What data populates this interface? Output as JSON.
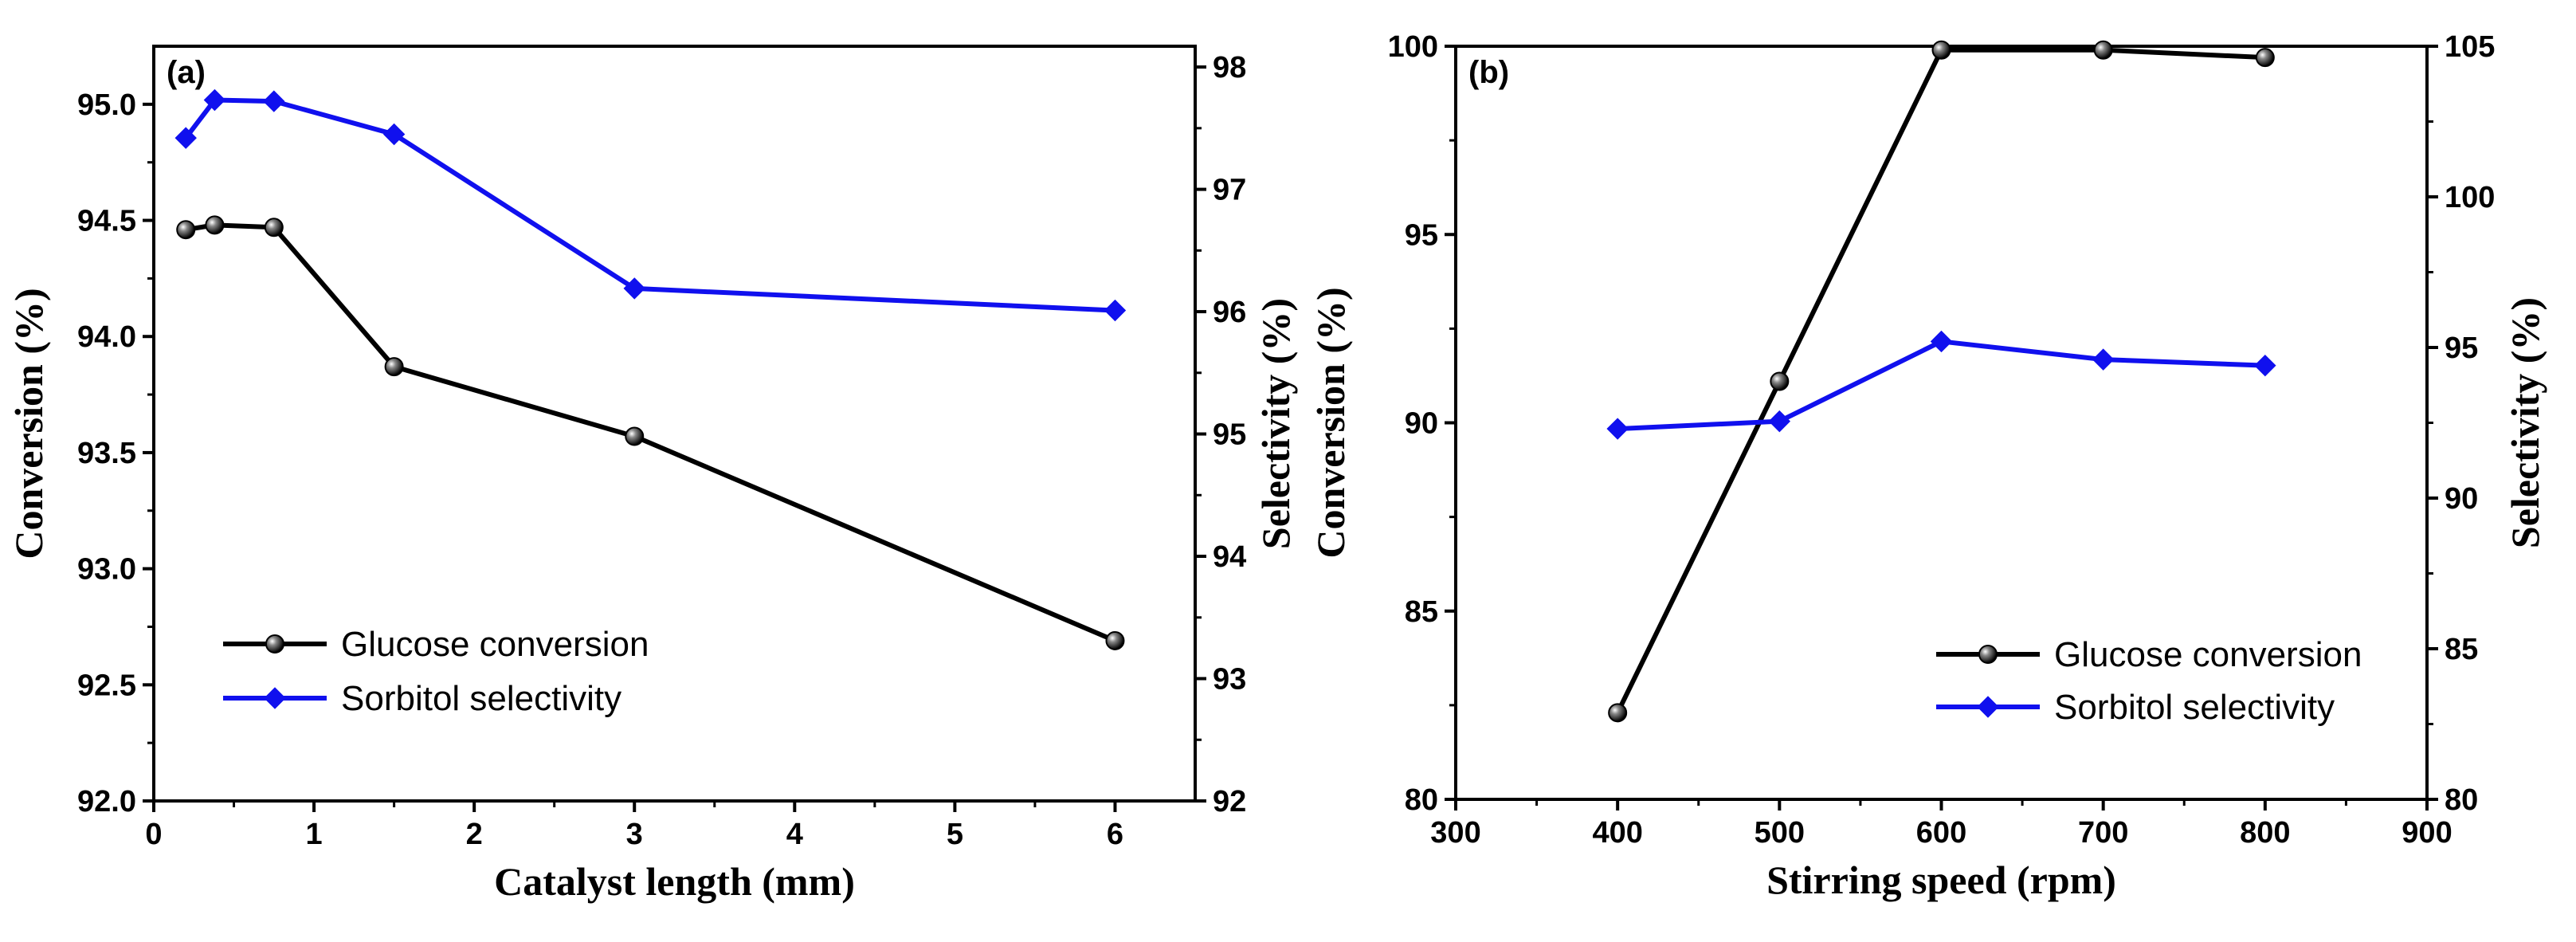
{
  "chart_data": [
    {
      "type": "line",
      "panel_label": "(a)",
      "xlabel": "Catalyst length (mm)",
      "ylabel": "Conversion (%)",
      "y2label": "Selectivity (%)",
      "xlim": [
        0,
        6.5
      ],
      "xticks": [
        0,
        1,
        2,
        3,
        4,
        5,
        6
      ],
      "xtick_labels": [
        "0",
        "1",
        "2",
        "3",
        "4",
        "5",
        "6"
      ],
      "ylim": [
        92.0,
        95.25
      ],
      "yticks": [
        92.0,
        92.5,
        93.0,
        93.5,
        94.0,
        94.5,
        95.0
      ],
      "ytick_labels": [
        "92.0",
        "92.5",
        "93.0",
        "93.5",
        "94.0",
        "94.5",
        "95.0"
      ],
      "y2lim": [
        92,
        98.17
      ],
      "y2ticks": [
        92,
        93,
        94,
        95,
        96,
        97,
        98
      ],
      "y2tick_labels": [
        "92",
        "93",
        "94",
        "95",
        "96",
        "97",
        "98"
      ],
      "legend_position": "bottom-left",
      "series": [
        {
          "name": "Glucose conversion",
          "axis": "left",
          "color": "#000000",
          "marker": "sphere",
          "x": [
            0.2,
            0.38,
            0.75,
            1.5,
            3,
            6
          ],
          "y": [
            94.46,
            94.48,
            94.47,
            93.87,
            93.57,
            92.69
          ]
        },
        {
          "name": "Sorbitol selectivity",
          "axis": "right",
          "color": "#1010ee",
          "marker": "diamond",
          "x": [
            0.2,
            0.38,
            0.75,
            1.5,
            3,
            6
          ],
          "y": [
            97.42,
            97.73,
            97.72,
            97.45,
            96.19,
            96.01
          ]
        }
      ]
    },
    {
      "type": "line",
      "panel_label": "(b)",
      "xlabel": "Stirring speed (rpm)",
      "ylabel": "Conversion (%)",
      "y2label": "Selectivity (%)",
      "xlim": [
        300,
        900
      ],
      "xticks": [
        300,
        400,
        500,
        600,
        700,
        800,
        900
      ],
      "xtick_labels": [
        "300",
        "400",
        "500",
        "600",
        "700",
        "800",
        "900"
      ],
      "ylim": [
        80,
        100
      ],
      "yticks": [
        80,
        85,
        90,
        95,
        100
      ],
      "ytick_labels": [
        "80",
        "85",
        "90",
        "95",
        "100"
      ],
      "y2lim": [
        80,
        105
      ],
      "y2ticks": [
        80,
        85,
        90,
        95,
        100,
        105
      ],
      "y2tick_labels": [
        "80",
        "85",
        "90",
        "95",
        "100",
        "105"
      ],
      "legend_position": "bottom-right",
      "series": [
        {
          "name": "Glucose conversion",
          "axis": "left",
          "color": "#000000",
          "marker": "sphere",
          "x": [
            400,
            500,
            600,
            700,
            800
          ],
          "y": [
            82.3,
            91.1,
            99.9,
            99.9,
            99.7
          ]
        },
        {
          "name": "Sorbitol selectivity",
          "axis": "right",
          "color": "#1010ee",
          "marker": "diamond",
          "x": [
            400,
            500,
            600,
            700,
            800
          ],
          "y": [
            92.3,
            92.55,
            95.2,
            94.6,
            94.4
          ]
        }
      ]
    }
  ]
}
